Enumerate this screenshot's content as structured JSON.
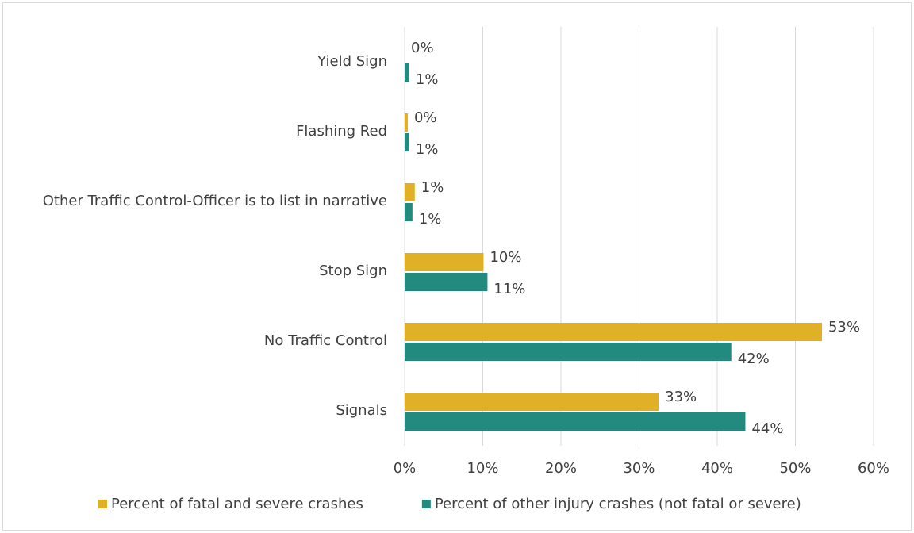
{
  "chart_data": {
    "type": "hbar",
    "categories": [
      "Yield Sign",
      "Flashing Red",
      "Other Traffic Control-Officer is to list in narrative",
      "Stop Sign",
      "No Traffic Control",
      "Signals"
    ],
    "series": [
      {
        "name": "Percent of fatal and severe crashes",
        "color": "#e0b126",
        "values": [
          0.0,
          0.4,
          1.3,
          10.1,
          53.4,
          32.5
        ],
        "value_labels": [
          "0%",
          "0%",
          "1%",
          "10%",
          "53%",
          "33%"
        ]
      },
      {
        "name": "Percent of other injury crashes (not fatal or severe)",
        "color": "#238a80",
        "values": [
          0.6,
          0.6,
          1.0,
          10.6,
          41.8,
          43.6
        ],
        "value_labels": [
          "1%",
          "1%",
          "1%",
          "11%",
          "42%",
          "44%"
        ]
      }
    ],
    "xlim": [
      0,
      60
    ],
    "xticks": [
      {
        "value": 0,
        "label": "0%"
      },
      {
        "value": 10,
        "label": "10%"
      },
      {
        "value": 20,
        "label": "20%"
      },
      {
        "value": 30,
        "label": "30%"
      },
      {
        "value": 40,
        "label": "40%"
      },
      {
        "value": 50,
        "label": "50%"
      },
      {
        "value": 60,
        "label": "60%"
      }
    ],
    "grid": true,
    "legend": "bottom"
  }
}
